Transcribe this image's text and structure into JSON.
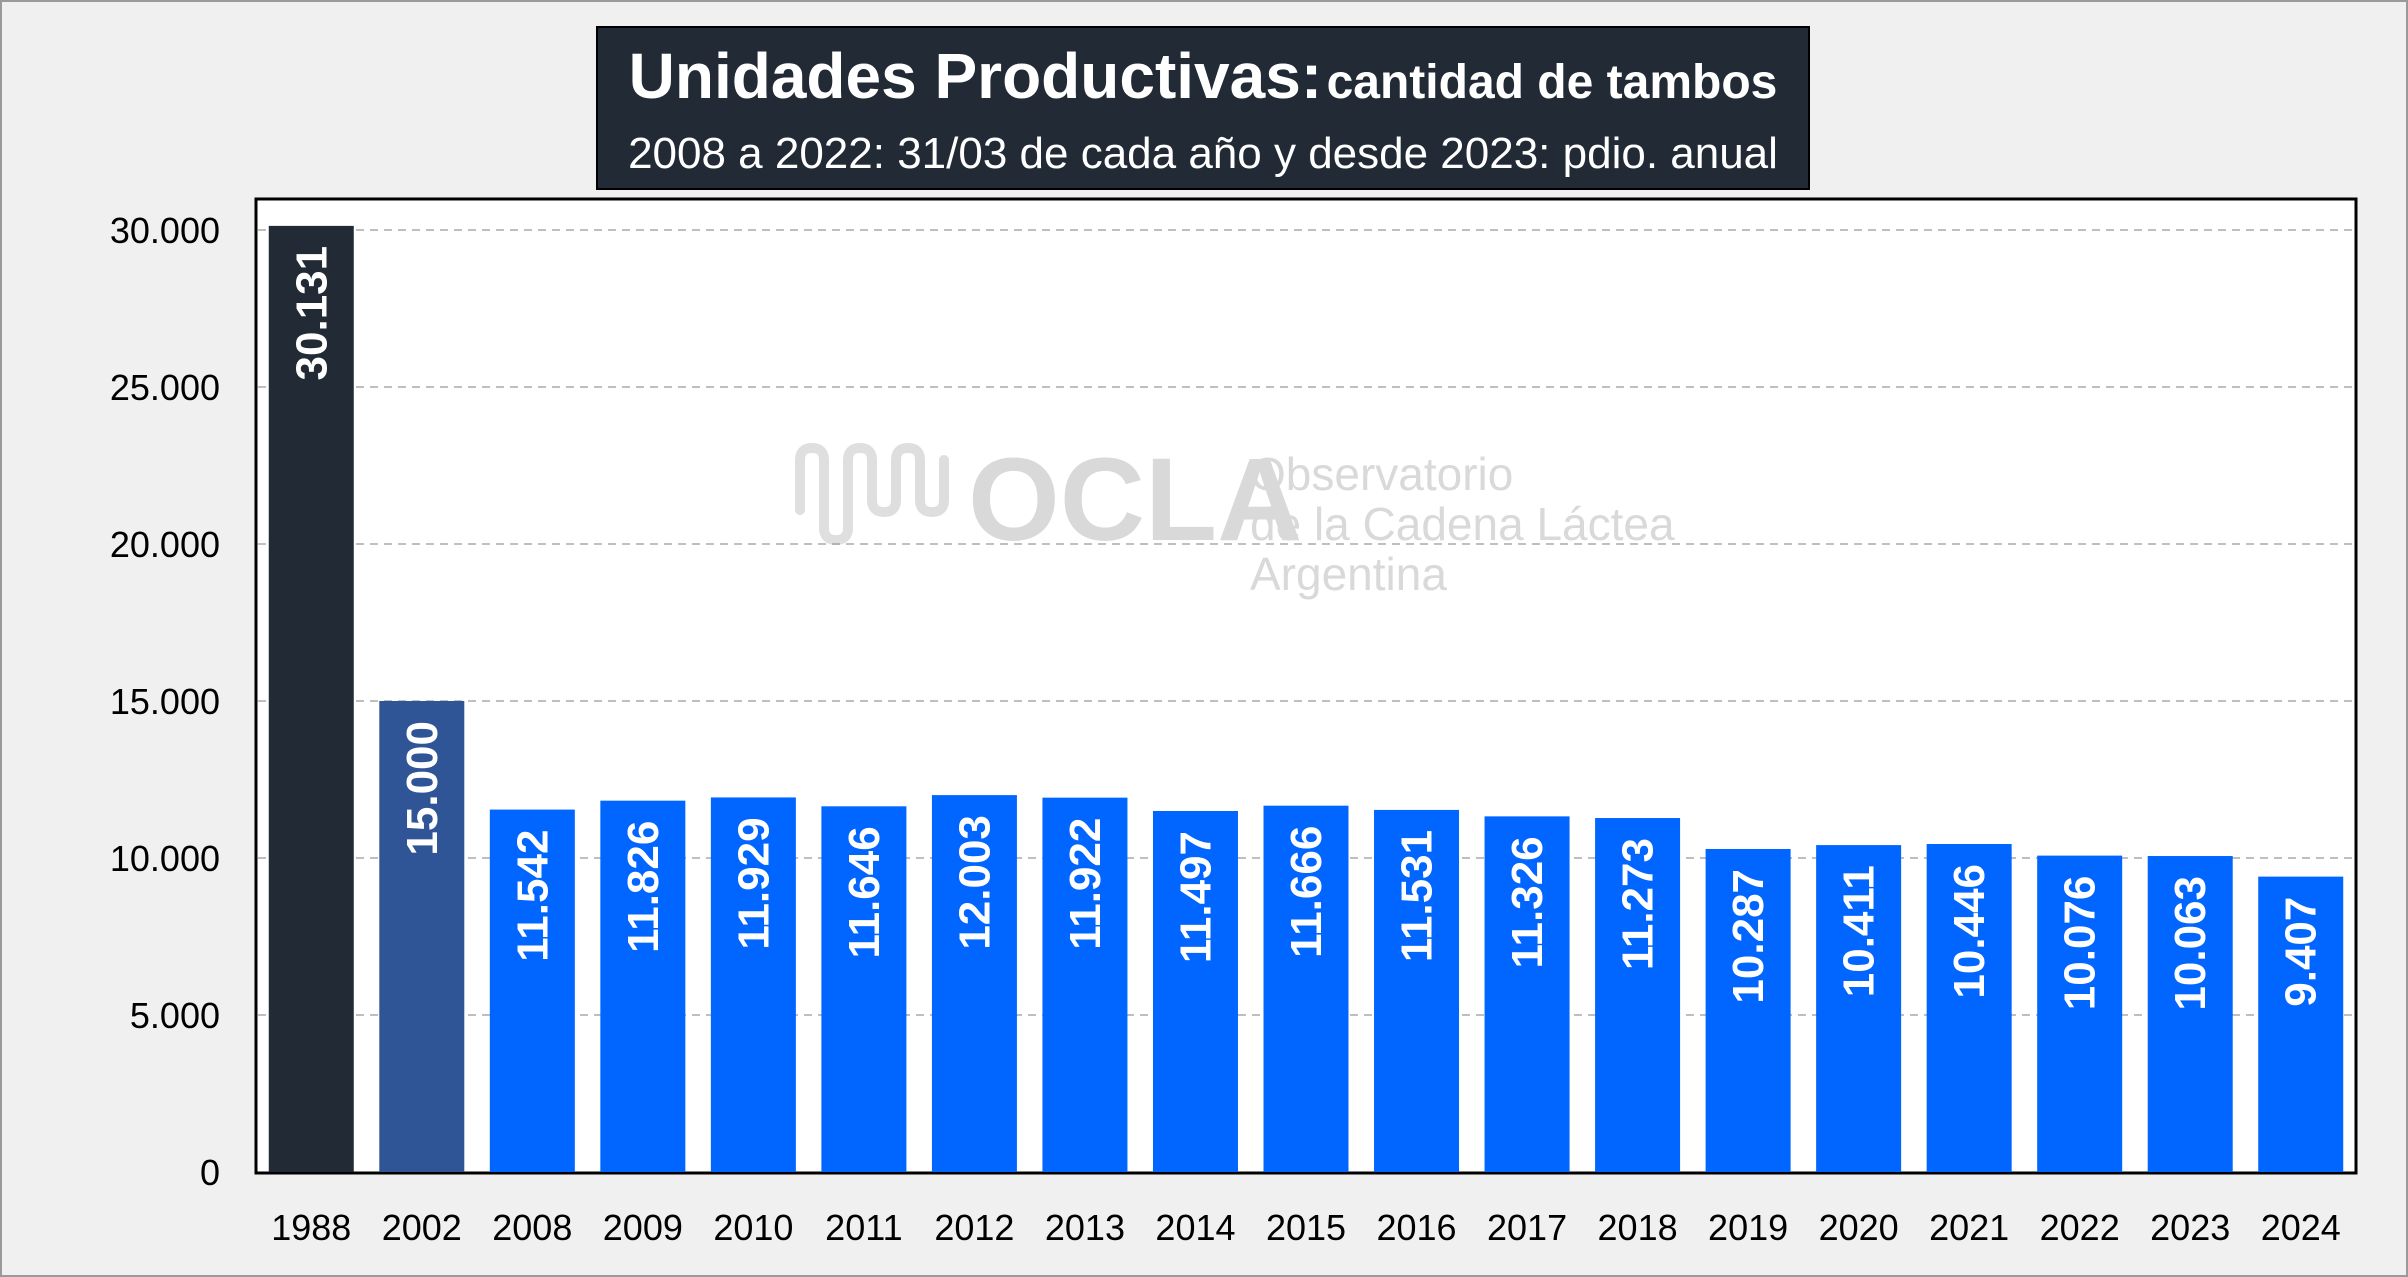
{
  "chart_data": {
    "type": "bar",
    "title": "Unidades Productivas:",
    "title_suffix": "cantidad de tambos",
    "subtitle": "2008 a 2022: 31/03 de cada año y desde 2023: pdio. anual",
    "xlabel": "",
    "ylabel": "",
    "categories": [
      "1988",
      "2002",
      "2008",
      "2009",
      "2010",
      "2011",
      "2012",
      "2013",
      "2014",
      "2015",
      "2016",
      "2017",
      "2018",
      "2019",
      "2020",
      "2021",
      "2022",
      "2023",
      "2024"
    ],
    "values": [
      30131,
      15000,
      11542,
      11826,
      11929,
      11646,
      12003,
      11922,
      11497,
      11666,
      11531,
      11326,
      11273,
      10287,
      10411,
      10446,
      10076,
      10063,
      9407
    ],
    "value_labels": [
      "30.131",
      "15.000",
      "11.542",
      "11.826",
      "11.929",
      "11.646",
      "12.003",
      "11.922",
      "11.497",
      "11.666",
      "11.531",
      "11.326",
      "11.273",
      "10.287",
      "10.411",
      "10.446",
      "10.076",
      "10.063",
      "9.407"
    ],
    "ylim": [
      0,
      31000
    ],
    "yticks": [
      0,
      5000,
      10000,
      15000,
      20000,
      25000,
      30000
    ],
    "ytick_labels": [
      "0",
      "5.000",
      "10.000",
      "15.000",
      "20.000",
      "25.000",
      "30.000"
    ],
    "grid": true,
    "legend": "none",
    "colors": {
      "1988": "#222a35",
      "2002": "#2f5597",
      "default": "#0066ff"
    }
  },
  "watermark": {
    "brand": "OCLA",
    "line1": "Observatorio",
    "line2": "de la Cadena Láctea",
    "line3": "Argentina"
  }
}
